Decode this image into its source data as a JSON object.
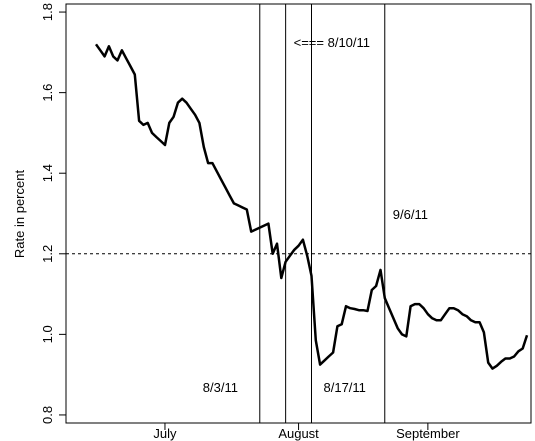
{
  "chart_data": {
    "type": "line",
    "ylabel": "Rate in percent",
    "ylim": [
      0.78,
      1.82
    ],
    "y_ticks": [
      0.8,
      1.0,
      1.2,
      1.4,
      1.6,
      1.8
    ],
    "y_tick_labels": [
      "0.8",
      "1.0",
      "1.2",
      "1.4",
      "1.6",
      "1.8"
    ],
    "x_month_labels": [
      {
        "label": "July",
        "index": 16
      },
      {
        "label": "August",
        "index": 47
      },
      {
        "label": "September",
        "index": 77
      }
    ],
    "reference_line": {
      "y": 1.2,
      "style": "dotted"
    },
    "event_lines": [
      {
        "index": 38,
        "label": "8/3/11"
      },
      {
        "index": 44,
        "label": "<=== 8/10/11"
      },
      {
        "index": 50,
        "label": "8/17/11"
      },
      {
        "index": 67,
        "label": "9/6/11"
      }
    ],
    "series": [
      {
        "values": [
          1.72,
          1.705,
          1.69,
          1.715,
          1.69,
          1.68,
          1.705,
          1.685,
          1.665,
          1.645,
          1.53,
          1.52,
          1.525,
          1.5,
          1.49,
          1.48,
          1.47,
          1.525,
          1.54,
          1.575,
          1.585,
          1.575,
          1.56,
          1.545,
          1.525,
          1.465,
          1.425,
          1.425,
          1.405,
          1.385,
          1.365,
          1.345,
          1.325,
          1.32,
          1.315,
          1.31,
          1.255,
          1.26,
          1.265,
          1.27,
          1.275,
          1.2,
          1.225,
          1.14,
          1.18,
          1.195,
          1.21,
          1.22,
          1.235,
          1.195,
          1.145,
          0.985,
          0.925,
          0.935,
          0.945,
          0.955,
          1.02,
          1.025,
          1.07,
          1.065,
          1.063,
          1.06,
          1.06,
          1.058,
          1.11,
          1.12,
          1.16,
          1.09,
          1.065,
          1.04,
          1.015,
          1.0,
          0.995,
          1.07,
          1.075,
          1.075,
          1.065,
          1.05,
          1.04,
          1.035,
          1.035,
          1.05,
          1.065,
          1.065,
          1.06,
          1.05,
          1.045,
          1.035,
          1.03,
          1.03,
          1.005,
          0.93,
          0.915,
          0.922,
          0.932,
          0.94,
          0.94,
          0.945,
          0.958,
          0.965,
          0.998
        ]
      }
    ]
  }
}
